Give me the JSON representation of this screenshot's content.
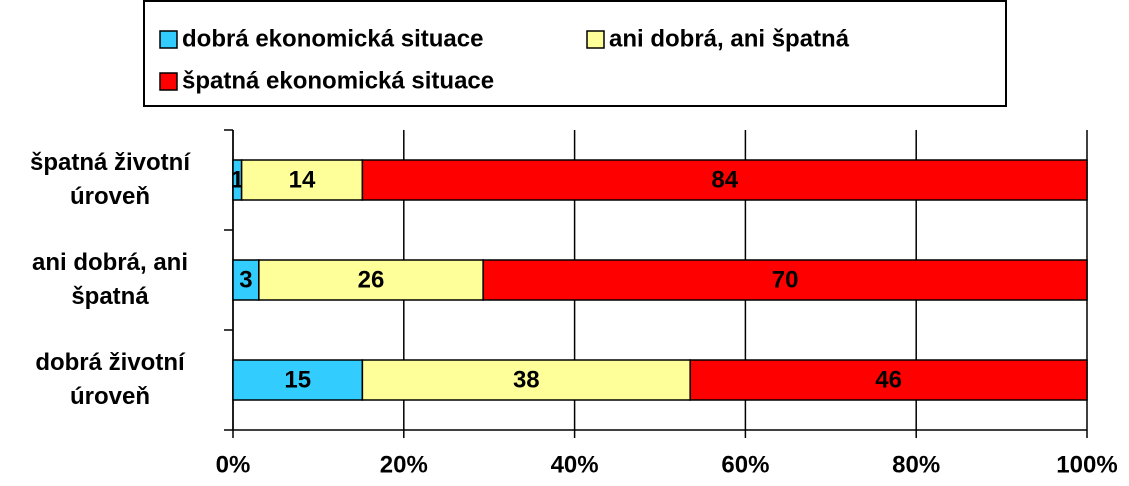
{
  "chart_data": {
    "type": "bar",
    "orientation": "horizontal",
    "stacking": "percent",
    "categories": [
      "špatná životní úroveň",
      "ani dobrá, ani špatná",
      "dobrá životní úroveň"
    ],
    "series": [
      {
        "name": "dobrá ekonomická situace",
        "color": "#33ccff",
        "values": [
          1,
          3,
          15
        ]
      },
      {
        "name": "ani dobrá, ani špatná",
        "color": "#ffff99",
        "values": [
          14,
          26,
          38
        ]
      },
      {
        "name": "špatná ekonomická situace",
        "color": "#ff0000",
        "values": [
          84,
          70,
          46
        ]
      }
    ],
    "xlim": [
      0,
      100
    ],
    "xticks": [
      {
        "value": 0,
        "label": "0%"
      },
      {
        "value": 20,
        "label": "20%"
      },
      {
        "value": 40,
        "label": "40%"
      },
      {
        "value": 60,
        "label": "60%"
      },
      {
        "value": 80,
        "label": "80%"
      },
      {
        "value": 100,
        "label": "100%"
      }
    ],
    "grid": true
  }
}
